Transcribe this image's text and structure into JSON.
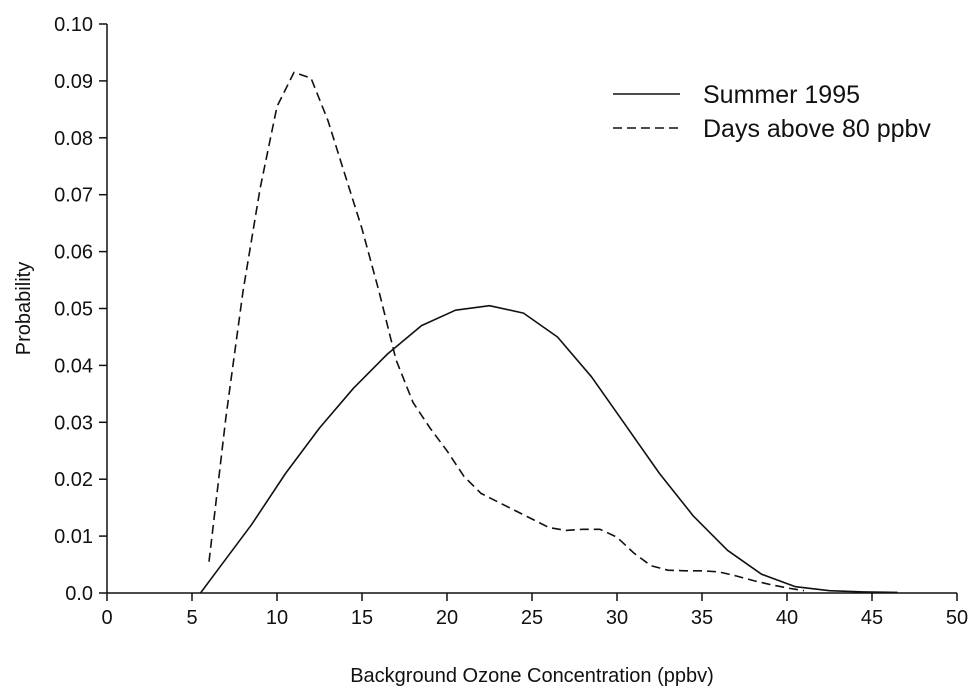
{
  "chart_data": {
    "type": "line",
    "title": "",
    "xlabel": "Background Ozone Concentration (ppbv)",
    "ylabel": "Probability",
    "xlim": [
      0,
      50
    ],
    "ylim": [
      0,
      0.1
    ],
    "x_ticks": [
      0,
      5,
      10,
      15,
      20,
      25,
      30,
      35,
      40,
      45,
      50
    ],
    "x_tick_labels": [
      "0",
      "5",
      "10",
      "15",
      "20",
      "25",
      "30",
      "35",
      "40",
      "45",
      "50"
    ],
    "y_ticks": [
      0,
      0.01,
      0.02,
      0.03,
      0.04,
      0.05,
      0.06,
      0.07,
      0.08,
      0.09,
      0.1
    ],
    "y_tick_labels": [
      "0.0",
      "0.01",
      "0.02",
      "0.03",
      "0.04",
      "0.05",
      "0.06",
      "0.07",
      "0.08",
      "0.09",
      "0.10"
    ],
    "grid": false,
    "legend_position": "top-right",
    "series": [
      {
        "name": "Summer 1995",
        "line_style": "solid",
        "color": "#111111",
        "points": [
          [
            5.5,
            0.0
          ],
          [
            6.5,
            0.004
          ],
          [
            8.5,
            0.012
          ],
          [
            10.5,
            0.021
          ],
          [
            12.5,
            0.029
          ],
          [
            14.5,
            0.036
          ],
          [
            16.5,
            0.042
          ],
          [
            18.5,
            0.047
          ],
          [
            20.5,
            0.0497
          ],
          [
            22.5,
            0.0505
          ],
          [
            24.5,
            0.0492
          ],
          [
            26.5,
            0.045
          ],
          [
            28.5,
            0.038
          ],
          [
            30.5,
            0.0295
          ],
          [
            32.5,
            0.021
          ],
          [
            34.5,
            0.0135
          ],
          [
            36.5,
            0.0075
          ],
          [
            38.5,
            0.0033
          ],
          [
            40.5,
            0.0011
          ],
          [
            42.5,
            0.0004
          ],
          [
            44.5,
            0.0002
          ],
          [
            46.5,
            0.0001
          ]
        ]
      },
      {
        "name": "Days above 80 ppbv",
        "line_style": "dashed",
        "color": "#111111",
        "points": [
          [
            6.0,
            0.0055
          ],
          [
            7.0,
            0.031
          ],
          [
            8.0,
            0.053
          ],
          [
            9.0,
            0.071
          ],
          [
            10.0,
            0.0855
          ],
          [
            11.0,
            0.0915
          ],
          [
            12.0,
            0.0905
          ],
          [
            13.0,
            0.083
          ],
          [
            14.0,
            0.0735
          ],
          [
            15.0,
            0.064
          ],
          [
            16.0,
            0.053
          ],
          [
            17.0,
            0.041
          ],
          [
            18.0,
            0.0335
          ],
          [
            19.0,
            0.029
          ],
          [
            20.0,
            0.025
          ],
          [
            21.0,
            0.0205
          ],
          [
            22.0,
            0.0175
          ],
          [
            23.0,
            0.016
          ],
          [
            24.0,
            0.0145
          ],
          [
            25.0,
            0.013
          ],
          [
            26.0,
            0.0115
          ],
          [
            27.0,
            0.011
          ],
          [
            28.0,
            0.0112
          ],
          [
            29.0,
            0.0112
          ],
          [
            30.0,
            0.0098
          ],
          [
            31.0,
            0.007
          ],
          [
            32.0,
            0.0048
          ],
          [
            33.0,
            0.004
          ],
          [
            34.0,
            0.0039
          ],
          [
            35.0,
            0.0039
          ],
          [
            36.0,
            0.0037
          ],
          [
            37.0,
            0.003
          ],
          [
            38.0,
            0.0022
          ],
          [
            39.0,
            0.0015
          ],
          [
            40.0,
            0.0009
          ],
          [
            41.0,
            0.0004
          ]
        ]
      }
    ]
  }
}
